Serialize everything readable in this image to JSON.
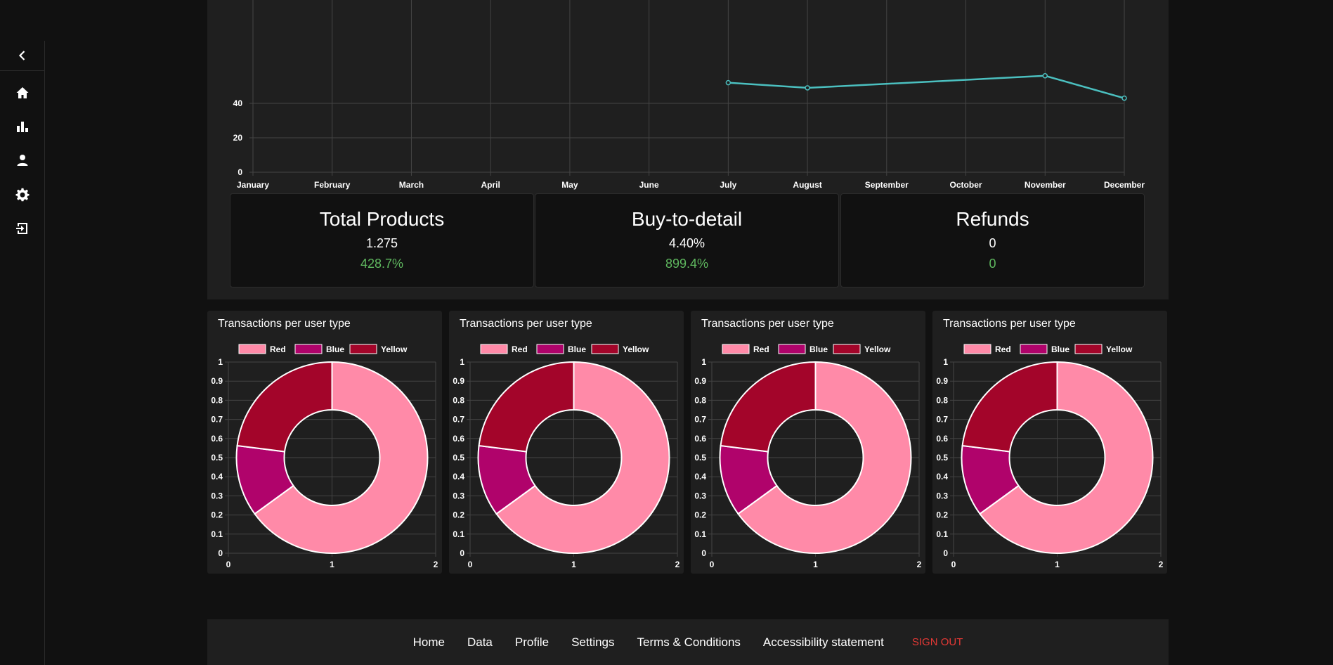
{
  "sidebar": {
    "items": [
      {
        "name": "collapse",
        "icon": "chevron-left-icon"
      },
      {
        "name": "home",
        "icon": "home-icon"
      },
      {
        "name": "data",
        "icon": "bar-chart-icon"
      },
      {
        "name": "profile",
        "icon": "user-icon"
      },
      {
        "name": "settings",
        "icon": "gear-icon"
      },
      {
        "name": "sign-out",
        "icon": "sign-out-icon"
      }
    ]
  },
  "chart_data": [
    {
      "type": "line",
      "categories": [
        "January",
        "February",
        "March",
        "April",
        "May",
        "June",
        "July",
        "August",
        "September",
        "October",
        "November",
        "December"
      ],
      "yticks": [
        "0",
        "20",
        "40"
      ],
      "ylim": [
        0,
        40
      ],
      "visible_ylim": [
        0,
        50
      ],
      "grid": true,
      "series": [
        {
          "color": "#4bc0c0",
          "points": [
            {
              "x": "July",
              "y": 52
            },
            {
              "x": "August",
              "y": 49
            },
            {
              "x": "November",
              "y": 56
            },
            {
              "x": "December",
              "y": 43
            }
          ]
        }
      ]
    },
    {
      "type": "pie",
      "title": "Transactions per user type",
      "legend": [
        "Red",
        "Blue",
        "Yellow"
      ],
      "legend_position": "top",
      "values": [
        65,
        12,
        23
      ],
      "colors": [
        "#ff8aa8",
        "#b0036b",
        "#a3052a"
      ],
      "xticks": [
        "0",
        "1",
        "2"
      ],
      "yticks": [
        "0",
        "0.1",
        "0.2",
        "0.3",
        "0.4",
        "0.5",
        "0.6",
        "0.7",
        "0.8",
        "0.9",
        "1"
      ]
    },
    {
      "type": "pie",
      "title": "Transactions per user type",
      "legend": [
        "Red",
        "Blue",
        "Yellow"
      ],
      "legend_position": "top",
      "values": [
        65,
        12,
        23
      ],
      "colors": [
        "#ff8aa8",
        "#b0036b",
        "#a3052a"
      ],
      "xticks": [
        "0",
        "1",
        "2"
      ],
      "yticks": [
        "0",
        "0.1",
        "0.2",
        "0.3",
        "0.4",
        "0.5",
        "0.6",
        "0.7",
        "0.8",
        "0.9",
        "1"
      ]
    },
    {
      "type": "pie",
      "title": "Transactions per user type",
      "legend": [
        "Red",
        "Blue",
        "Yellow"
      ],
      "legend_position": "top",
      "values": [
        65,
        12,
        23
      ],
      "colors": [
        "#ff8aa8",
        "#b0036b",
        "#a3052a"
      ],
      "xticks": [
        "0",
        "1",
        "2"
      ],
      "yticks": [
        "0",
        "0.1",
        "0.2",
        "0.3",
        "0.4",
        "0.5",
        "0.6",
        "0.7",
        "0.8",
        "0.9",
        "1"
      ]
    },
    {
      "type": "pie",
      "title": "Transactions per user type",
      "legend": [
        "Red",
        "Blue",
        "Yellow"
      ],
      "legend_position": "top",
      "values": [
        65,
        12,
        23
      ],
      "colors": [
        "#ff8aa8",
        "#b0036b",
        "#a3052a"
      ],
      "xticks": [
        "0",
        "1",
        "2"
      ],
      "yticks": [
        "0",
        "0.1",
        "0.2",
        "0.3",
        "0.4",
        "0.5",
        "0.6",
        "0.7",
        "0.8",
        "0.9",
        "1"
      ]
    }
  ],
  "stats": [
    {
      "title": "Total Products",
      "value": "1.275",
      "change": "428.7%"
    },
    {
      "title": "Buy-to-detail",
      "value": "4.40%",
      "change": "899.4%"
    },
    {
      "title": "Refunds",
      "value": "0",
      "change": "0"
    }
  ],
  "donut_titles": [
    "Transactions per user type",
    "Transactions per user type",
    "Transactions per user type",
    "Transactions per user type"
  ],
  "footer": {
    "links": [
      "Home",
      "Data",
      "Profile",
      "Settings",
      "Terms & Conditions",
      "Accessibility statement"
    ],
    "sign_out": "SIGN OUT"
  },
  "colors": {
    "background": "#111111",
    "panel": "#1f1f1f",
    "positive": "#5fb85f",
    "sign_out": "#e53935",
    "line": "#4bc0c0"
  }
}
